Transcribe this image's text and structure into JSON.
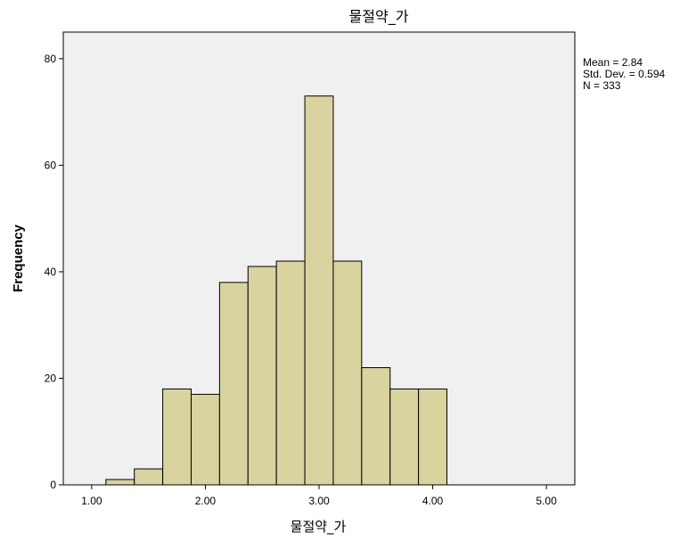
{
  "chart_data": {
    "type": "bar",
    "title": "물절약_가",
    "xlabel": "물절약_가",
    "ylabel": "Frequency",
    "xlim": [
      0.75,
      5.25
    ],
    "ylim": [
      0,
      85
    ],
    "x_ticks": [
      1.0,
      2.0,
      3.0,
      4.0,
      5.0
    ],
    "x_tick_labels": [
      "1.00",
      "2.00",
      "3.00",
      "4.00",
      "5.00"
    ],
    "y_ticks": [
      0,
      20,
      40,
      60,
      80
    ],
    "y_tick_labels": [
      "0",
      "20",
      "40",
      "60",
      "80"
    ],
    "bin_width": 0.25,
    "bins": [
      {
        "start": 1.125,
        "end": 1.375,
        "count": 1
      },
      {
        "start": 1.375,
        "end": 1.625,
        "count": 3
      },
      {
        "start": 1.625,
        "end": 1.875,
        "count": 18
      },
      {
        "start": 1.875,
        "end": 2.125,
        "count": 17
      },
      {
        "start": 2.125,
        "end": 2.375,
        "count": 38
      },
      {
        "start": 2.375,
        "end": 2.625,
        "count": 41
      },
      {
        "start": 2.625,
        "end": 2.875,
        "count": 42
      },
      {
        "start": 2.875,
        "end": 3.125,
        "count": 73
      },
      {
        "start": 3.125,
        "end": 3.375,
        "count": 42
      },
      {
        "start": 3.375,
        "end": 3.625,
        "count": 22
      },
      {
        "start": 3.625,
        "end": 3.875,
        "count": 18
      },
      {
        "start": 3.875,
        "end": 4.125,
        "count": 18
      }
    ],
    "bar_color": "#d8d39f",
    "bar_edge_color": "#000000",
    "plot_background": "#f0f0f0",
    "grid": false,
    "stats": {
      "mean": "Mean = 2.84",
      "std": "Std. Dev. = 0.594",
      "n": "N = 333"
    }
  }
}
